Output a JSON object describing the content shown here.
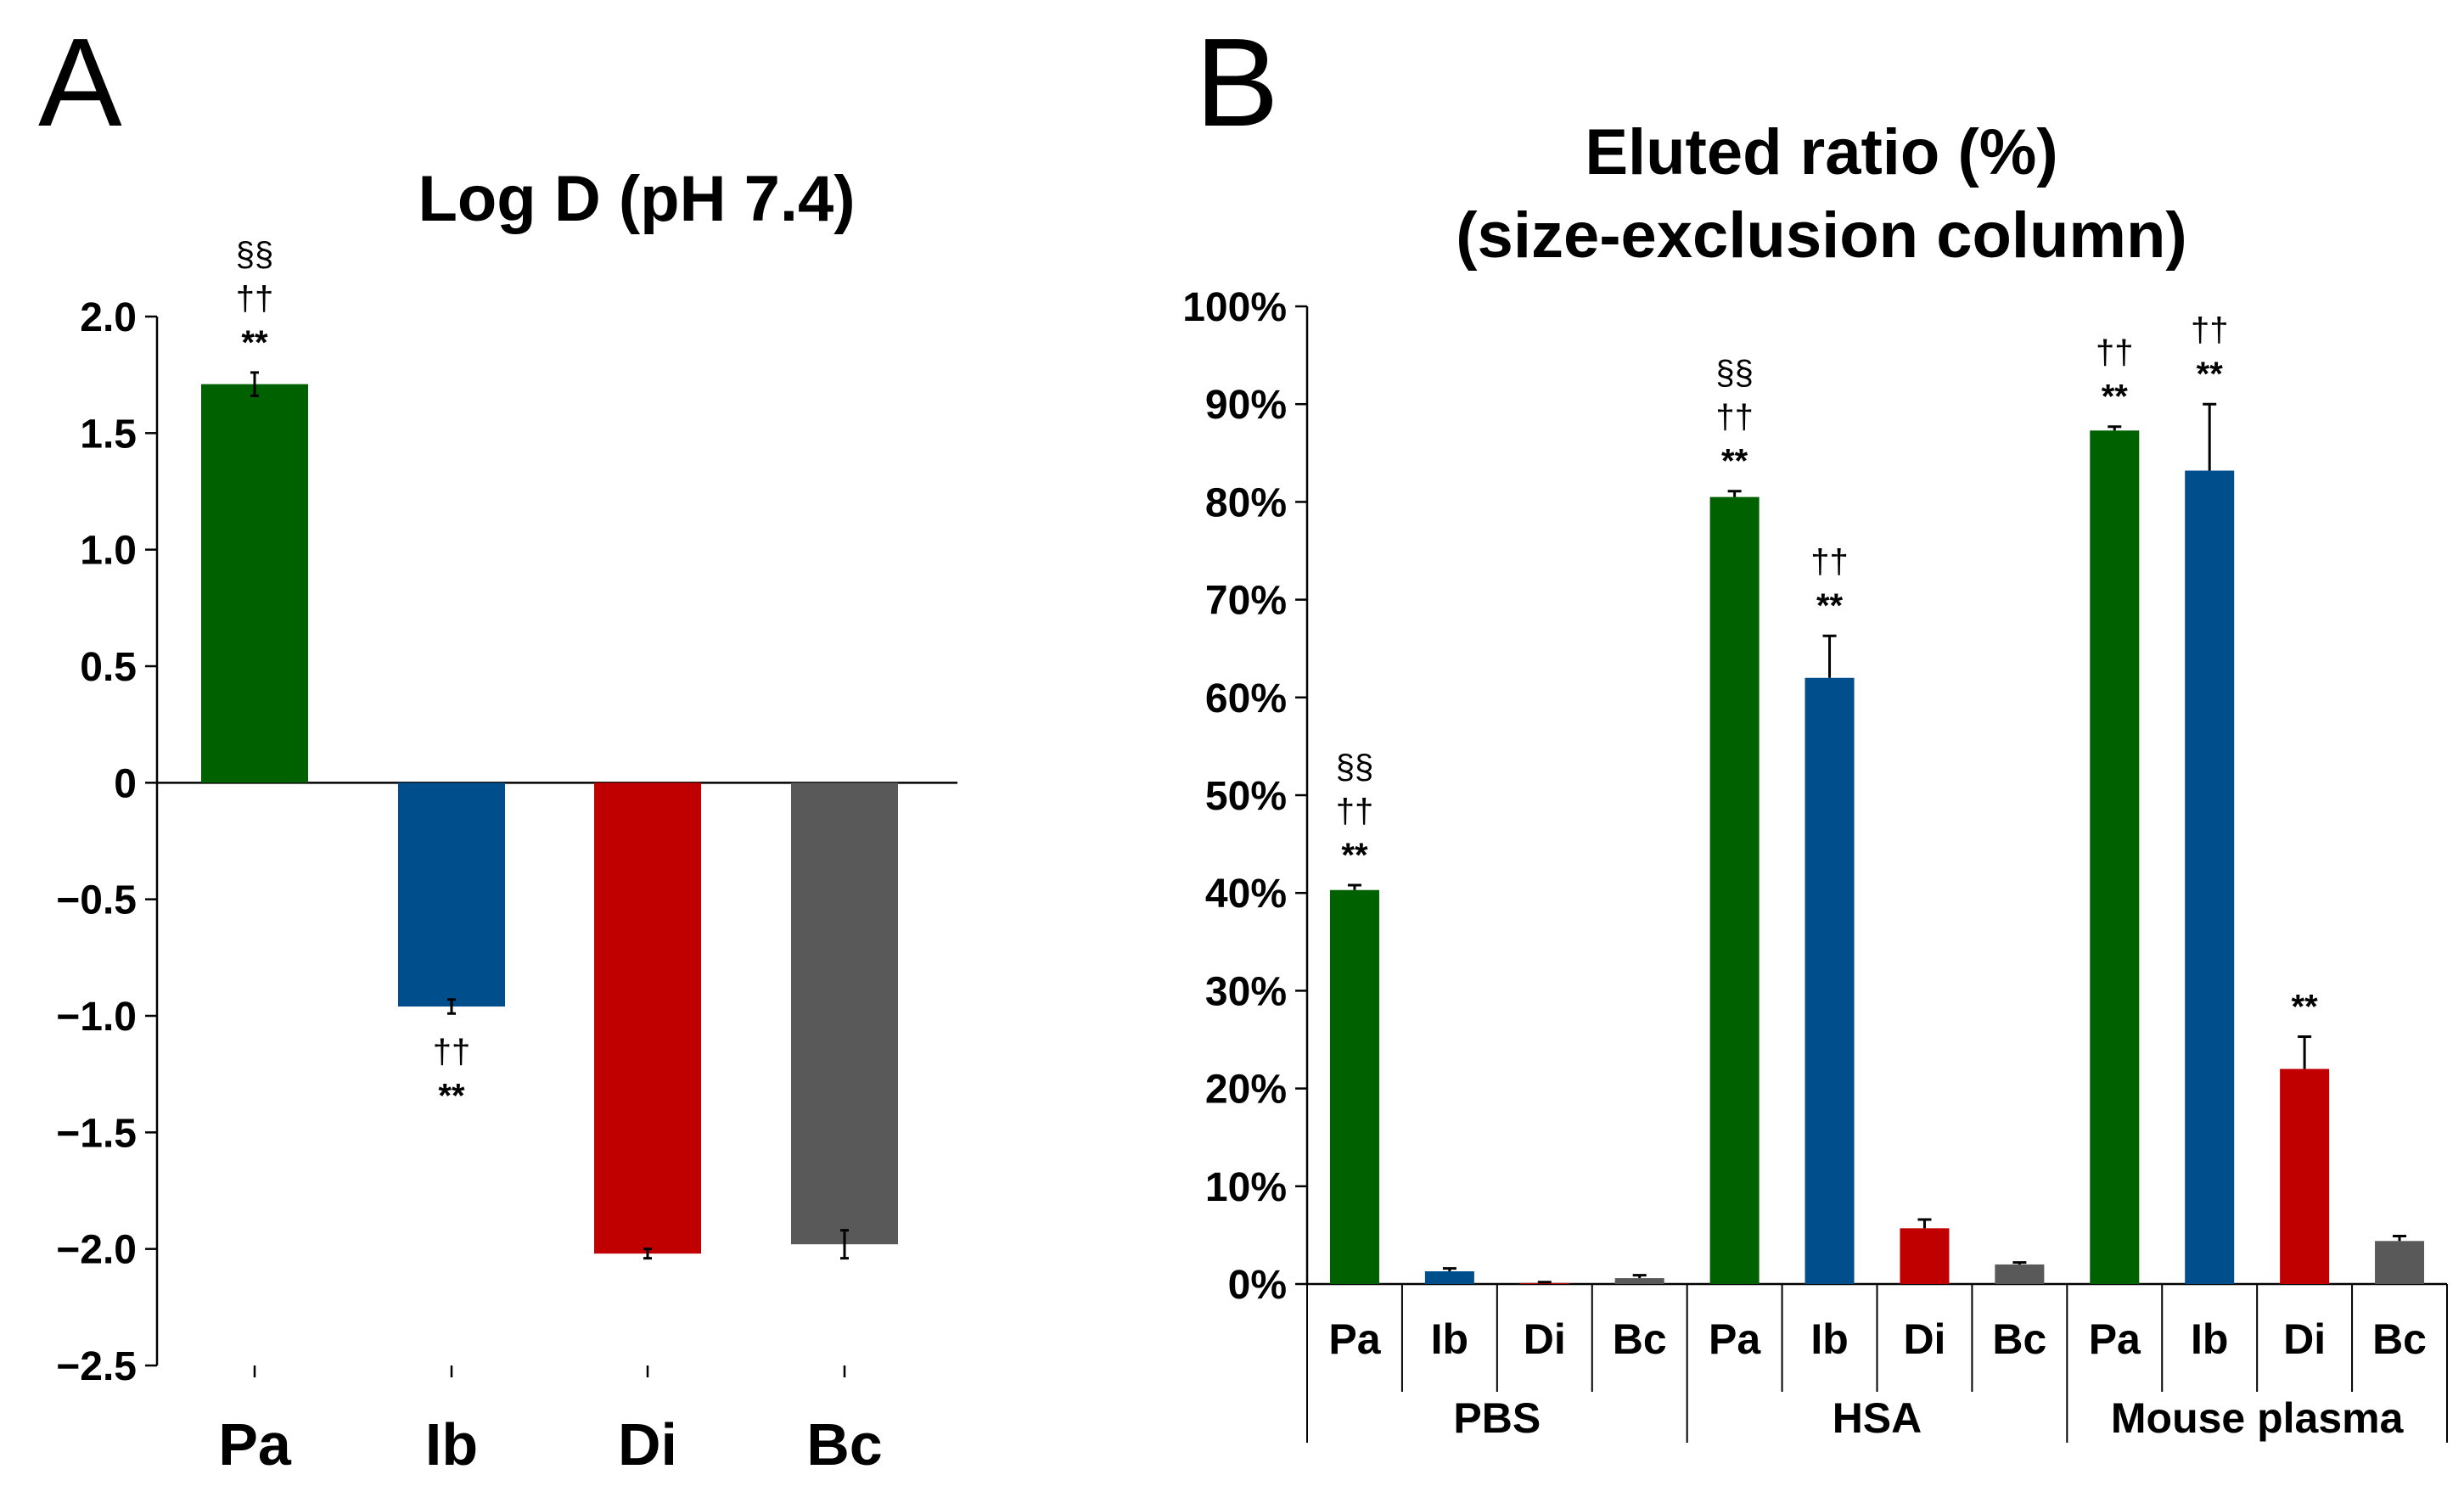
{
  "colors": {
    "Pa": "#006100",
    "Ib": "#004E8C",
    "Di": "#C00000",
    "Bc": "#595959"
  },
  "chart_data": [
    {
      "panel": "A",
      "type": "bar",
      "title": "Log D (pH 7.4)",
      "categories": [
        "Pa",
        "Ib",
        "Di",
        "Bc"
      ],
      "values": [
        1.71,
        -0.96,
        -2.02,
        -1.98
      ],
      "errors": [
        0.05,
        0.03,
        0.02,
        0.06
      ],
      "ylim": [
        -2.5,
        2.0
      ],
      "yticks": [
        2.0,
        1.5,
        1.0,
        0.5,
        0,
        -0.5,
        -1.0,
        -1.5,
        -2.0,
        -2.5
      ],
      "ytick_labels": [
        "2.0",
        "1.5",
        "1.0",
        "0.5",
        "0",
        "−0.5",
        "−1.0",
        "−1.5",
        "−2.0",
        "−2.5"
      ],
      "significance": [
        [
          "§§",
          "††",
          "**"
        ],
        [
          "††",
          "**"
        ],
        [],
        []
      ],
      "xlabel": "",
      "ylabel": ""
    },
    {
      "panel": "B",
      "type": "bar",
      "title_lines": [
        "Eluted ratio (%)",
        "(size-exclusion column)"
      ],
      "groups": [
        "PBS",
        "HSA",
        "Mouse plasma"
      ],
      "categories": [
        "Pa",
        "Ib",
        "Di",
        "Bc"
      ],
      "series": [
        {
          "group": "PBS",
          "values": [
            40.3,
            1.3,
            0.1,
            0.6
          ],
          "errors": [
            0.5,
            0.3,
            0.1,
            0.3
          ]
        },
        {
          "group": "HSA",
          "values": [
            80.5,
            62.0,
            5.7,
            2.0
          ],
          "errors": [
            0.6,
            4.3,
            0.9,
            0.2
          ]
        },
        {
          "group": "Mouse plasma",
          "values": [
            87.3,
            83.2,
            22.0,
            4.4
          ],
          "errors": [
            0.4,
            6.8,
            3.3,
            0.5
          ]
        }
      ],
      "significance": [
        [
          [
            "§§",
            "††",
            "**"
          ],
          [],
          [],
          []
        ],
        [
          [
            "§§",
            "††",
            "**"
          ],
          [
            "††",
            "**"
          ],
          [],
          []
        ],
        [
          [
            "††",
            "**"
          ],
          [
            "††",
            "**"
          ],
          [
            "**"
          ],
          []
        ]
      ],
      "ylim": [
        0,
        100
      ],
      "yticks": [
        0,
        10,
        20,
        30,
        40,
        50,
        60,
        70,
        80,
        90,
        100
      ],
      "ytick_labels": [
        "0%",
        "10%",
        "20%",
        "30%",
        "40%",
        "50%",
        "60%",
        "70%",
        "80%",
        "90%",
        "100%"
      ],
      "xlabel": "",
      "ylabel": ""
    }
  ]
}
